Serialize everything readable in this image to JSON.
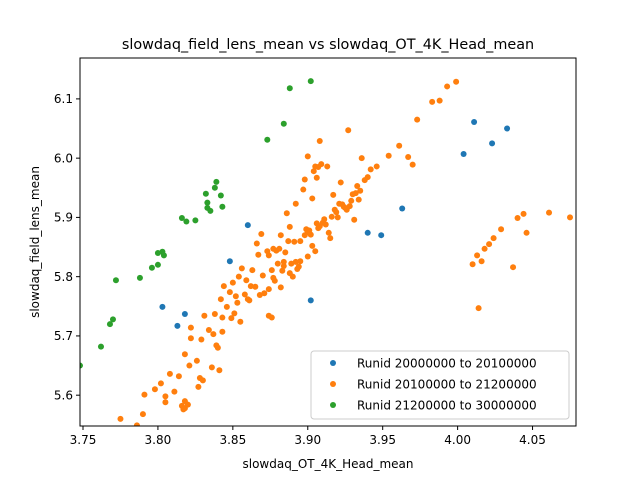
{
  "chart_data": {
    "type": "scatter",
    "title": "slowdaq_field_lens_mean vs slowdaq_OT_4K_Head_mean",
    "xlabel": "slowdaq_OT_4K_Head_mean",
    "ylabel": "slowdaq_field_lens_mean",
    "xlim": [
      3.748,
      4.079
    ],
    "ylim": [
      5.548,
      6.169
    ],
    "xticks": [
      "3.75",
      "3.80",
      "3.85",
      "3.90",
      "3.95",
      "4.00",
      "4.05"
    ],
    "yticks": [
      "5.6",
      "5.7",
      "5.8",
      "5.9",
      "6.0",
      "6.1"
    ],
    "grid": false,
    "legend_position": "lower-right",
    "series": [
      {
        "name": "Runid 20000000 to 20100000",
        "color": "#1f77b4",
        "points": [
          [
            3.803,
            5.749
          ],
          [
            3.813,
            5.717
          ],
          [
            3.818,
            5.737
          ],
          [
            3.848,
            5.826
          ],
          [
            3.86,
            5.887
          ],
          [
            3.902,
            5.76
          ],
          [
            3.94,
            5.874
          ],
          [
            3.949,
            5.87
          ],
          [
            3.963,
            5.915
          ],
          [
            4.004,
            6.007
          ],
          [
            4.011,
            6.061
          ],
          [
            4.023,
            6.025
          ],
          [
            4.033,
            6.05
          ]
        ]
      },
      {
        "name": "Runid 20100000 to 21200000",
        "color": "#ff7f0e",
        "points": [
          [
            3.775,
            5.56
          ],
          [
            3.78,
            5.542
          ],
          [
            3.786,
            5.549
          ],
          [
            3.79,
            5.568
          ],
          [
            3.791,
            5.601
          ],
          [
            3.798,
            5.61
          ],
          [
            3.802,
            5.62
          ],
          [
            3.805,
            5.588
          ],
          [
            3.805,
            5.598
          ],
          [
            3.808,
            5.636
          ],
          [
            3.811,
            5.606
          ],
          [
            3.814,
            5.632
          ],
          [
            3.816,
            5.582
          ],
          [
            3.817,
            5.576
          ],
          [
            3.818,
            5.59
          ],
          [
            3.818,
            5.578
          ],
          [
            3.82,
            5.584
          ],
          [
            3.818,
            5.669
          ],
          [
            3.821,
            5.65
          ],
          [
            3.822,
            5.696
          ],
          [
            3.822,
            5.714
          ],
          [
            3.826,
            5.658
          ],
          [
            3.827,
            5.614
          ],
          [
            3.828,
            5.629
          ],
          [
            3.83,
            5.625
          ],
          [
            3.831,
            5.734
          ],
          [
            3.829,
            5.694
          ],
          [
            3.834,
            5.71
          ],
          [
            3.836,
            5.647
          ],
          [
            3.837,
            5.703
          ],
          [
            3.838,
            5.737
          ],
          [
            3.839,
            5.684
          ],
          [
            3.84,
            5.68
          ],
          [
            3.841,
            5.642
          ],
          [
            3.842,
            5.762
          ],
          [
            3.843,
            5.731
          ],
          [
            3.843,
            5.707
          ],
          [
            3.844,
            5.784
          ],
          [
            3.846,
            5.749
          ],
          [
            3.848,
            5.774
          ],
          [
            3.849,
            5.73
          ],
          [
            3.85,
            5.79
          ],
          [
            3.851,
            5.738
          ],
          [
            3.852,
            5.767
          ],
          [
            3.853,
            5.756
          ],
          [
            3.854,
            5.8
          ],
          [
            3.855,
            5.724
          ],
          [
            3.856,
            5.814
          ],
          [
            3.858,
            5.77
          ],
          [
            3.859,
            5.794
          ],
          [
            3.86,
            5.762
          ],
          [
            3.861,
            5.76
          ],
          [
            3.862,
            5.784
          ],
          [
            3.863,
            5.811
          ],
          [
            3.865,
            5.783
          ],
          [
            3.866,
            5.856
          ],
          [
            3.867,
            5.837
          ],
          [
            3.868,
            5.769
          ],
          [
            3.869,
            5.872
          ],
          [
            3.87,
            5.802
          ],
          [
            3.871,
            5.772
          ],
          [
            3.873,
            5.843
          ],
          [
            3.874,
            5.779
          ],
          [
            3.874,
            5.734
          ],
          [
            3.874,
            5.836
          ],
          [
            3.876,
            5.731
          ],
          [
            3.876,
            5.811
          ],
          [
            3.877,
            5.847
          ],
          [
            3.877,
            5.798
          ],
          [
            3.878,
            5.793
          ],
          [
            3.879,
            5.844
          ],
          [
            3.88,
            5.822
          ],
          [
            3.881,
            5.847
          ],
          [
            3.882,
            5.782
          ],
          [
            3.882,
            5.87
          ],
          [
            3.883,
            5.81
          ],
          [
            3.884,
            5.818
          ],
          [
            3.884,
            5.825
          ],
          [
            3.885,
            5.841
          ],
          [
            3.886,
            5.907
          ],
          [
            3.887,
            5.86
          ],
          [
            3.888,
            5.806
          ],
          [
            3.888,
            5.884
          ],
          [
            3.889,
            5.822
          ],
          [
            3.89,
            5.8
          ],
          [
            3.891,
            5.859
          ],
          [
            3.892,
            5.825
          ],
          [
            3.892,
            5.923
          ],
          [
            3.893,
            5.813
          ],
          [
            3.894,
            5.817
          ],
          [
            3.895,
            5.826
          ],
          [
            3.895,
            5.86
          ],
          [
            3.897,
            5.947
          ],
          [
            3.898,
            5.87
          ],
          [
            3.898,
            5.964
          ],
          [
            3.899,
            5.88
          ],
          [
            3.9,
            5.875
          ],
          [
            3.9,
            5.834
          ],
          [
            3.9,
            6.003
          ],
          [
            3.901,
            5.878
          ],
          [
            3.902,
            5.871
          ],
          [
            3.903,
            5.852
          ],
          [
            3.903,
            5.932
          ],
          [
            3.904,
            5.978
          ],
          [
            3.905,
            5.986
          ],
          [
            3.905,
            5.843
          ],
          [
            3.906,
            5.89
          ],
          [
            3.906,
            5.967
          ],
          [
            3.907,
            5.985
          ],
          [
            3.907,
            5.882
          ],
          [
            3.908,
            5.885
          ],
          [
            3.908,
            6.029
          ],
          [
            3.909,
            5.99
          ],
          [
            3.91,
            5.891
          ],
          [
            3.911,
            5.897
          ],
          [
            3.912,
            5.888
          ],
          [
            3.913,
            5.986
          ],
          [
            3.914,
            5.874
          ],
          [
            3.915,
            5.865
          ],
          [
            3.916,
            5.901
          ],
          [
            3.917,
            5.938
          ],
          [
            3.918,
            5.913
          ],
          [
            3.919,
            5.909
          ],
          [
            3.92,
            5.9
          ],
          [
            3.921,
            5.923
          ],
          [
            3.922,
            5.959
          ],
          [
            3.923,
            5.922
          ],
          [
            3.924,
            5.918
          ],
          [
            3.925,
            5.916
          ],
          [
            3.926,
            5.913
          ],
          [
            3.927,
            6.047
          ],
          [
            3.928,
            5.919
          ],
          [
            3.929,
            5.928
          ],
          [
            3.93,
            5.939
          ],
          [
            3.931,
            5.896
          ],
          [
            3.932,
            5.941
          ],
          [
            3.933,
            5.953
          ],
          [
            3.934,
            5.93
          ],
          [
            3.935,
            5.945
          ],
          [
            3.936,
            6.0
          ],
          [
            3.938,
            5.963
          ],
          [
            3.94,
            5.968
          ],
          [
            3.942,
            5.981
          ],
          [
            3.946,
            5.986
          ],
          [
            3.954,
            6.004
          ],
          [
            3.961,
            6.021
          ],
          [
            3.967,
            6.002
          ],
          [
            3.97,
            5.989
          ],
          [
            3.973,
            6.065
          ],
          [
            3.983,
            6.095
          ],
          [
            3.988,
            6.097
          ],
          [
            3.993,
            6.121
          ],
          [
            3.999,
            6.129
          ],
          [
            4.01,
            5.821
          ],
          [
            4.013,
            5.836
          ],
          [
            4.014,
            5.747
          ],
          [
            4.016,
            5.826
          ],
          [
            4.018,
            5.847
          ],
          [
            4.021,
            5.855
          ],
          [
            4.024,
            5.865
          ],
          [
            4.029,
            5.88
          ],
          [
            4.037,
            5.816
          ],
          [
            4.04,
            5.899
          ],
          [
            4.044,
            5.906
          ],
          [
            4.046,
            5.874
          ],
          [
            4.061,
            5.908
          ],
          [
            4.075,
            5.9
          ]
        ]
      },
      {
        "name": "Runid 21200000 to 30000000",
        "color": "#2ca02c",
        "points": [
          [
            3.748,
            5.65
          ],
          [
            3.762,
            5.682
          ],
          [
            3.768,
            5.72
          ],
          [
            3.77,
            5.728
          ],
          [
            3.772,
            5.794
          ],
          [
            3.788,
            5.798
          ],
          [
            3.796,
            5.815
          ],
          [
            3.8,
            5.82
          ],
          [
            3.8,
            5.84
          ],
          [
            3.803,
            5.842
          ],
          [
            3.804,
            5.836
          ],
          [
            3.816,
            5.899
          ],
          [
            3.819,
            5.893
          ],
          [
            3.825,
            5.895
          ],
          [
            3.832,
            5.94
          ],
          [
            3.833,
            5.925
          ],
          [
            3.833,
            5.916
          ],
          [
            3.835,
            5.911
          ],
          [
            3.838,
            5.95
          ],
          [
            3.839,
            5.96
          ],
          [
            3.842,
            5.937
          ],
          [
            3.843,
            5.918
          ],
          [
            3.873,
            6.031
          ],
          [
            3.884,
            6.058
          ],
          [
            3.888,
            6.118
          ],
          [
            3.902,
            6.13
          ]
        ]
      }
    ]
  }
}
